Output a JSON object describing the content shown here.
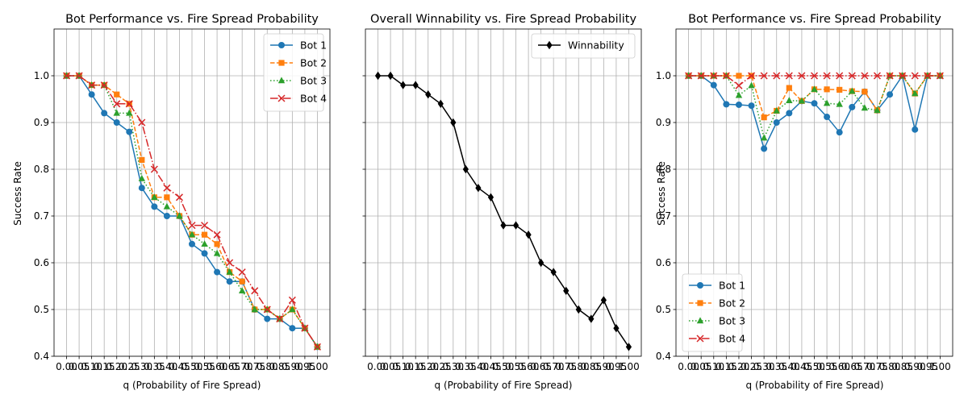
{
  "colors": {
    "bot1": "#1f77b4",
    "bot2": "#ff7f0e",
    "bot3": "#2ca02c",
    "bot4": "#d62728",
    "winnability": "#000000",
    "grid": "#b0b0b0"
  },
  "chart_data": [
    {
      "type": "line",
      "title": "Bot Performance vs. Fire Spread Probability",
      "xlabel": "q (Probability of Fire Spread)",
      "ylabel": "Success Rate",
      "ylim": [
        0.4,
        1.1
      ],
      "yticks": [
        "0.4",
        "0.5",
        "0.6",
        "0.7",
        "0.8",
        "0.9",
        "1.0"
      ],
      "x": [
        0.0,
        0.05,
        0.1,
        0.15,
        0.2,
        0.25,
        0.3,
        0.35,
        0.4,
        0.45,
        0.5,
        0.55,
        0.6,
        0.65,
        0.7,
        0.75,
        0.8,
        0.85,
        0.9,
        0.95,
        1.0
      ],
      "xticklabels": [
        "0.00",
        "0.05",
        "0.10",
        "0.15",
        "0.20",
        "0.25",
        "0.30",
        "0.35",
        "0.40",
        "0.45",
        "0.50",
        "0.55",
        "0.60",
        "0.65",
        "0.70",
        "0.75",
        "0.80",
        "0.85",
        "0.90",
        "0.95",
        "1.00"
      ],
      "grid": true,
      "legend": "upper right",
      "series": [
        {
          "name": "Bot 1",
          "marker": "circle",
          "dash": "solid",
          "color": "#1f77b4",
          "values": [
            1.0,
            1.0,
            0.96,
            0.92,
            0.9,
            0.88,
            0.76,
            0.72,
            0.7,
            0.7,
            0.64,
            0.62,
            0.58,
            0.56,
            0.56,
            0.5,
            0.48,
            0.48,
            0.46,
            0.46,
            0.42
          ]
        },
        {
          "name": "Bot 2",
          "marker": "square",
          "dash": "dashed",
          "color": "#ff7f0e",
          "values": [
            1.0,
            1.0,
            0.98,
            0.98,
            0.96,
            0.94,
            0.82,
            0.74,
            0.74,
            0.7,
            0.66,
            0.66,
            0.64,
            0.58,
            0.56,
            0.5,
            0.5,
            0.48,
            0.5,
            0.46,
            0.42
          ]
        },
        {
          "name": "Bot 3",
          "marker": "triangle",
          "dash": "dotted",
          "color": "#2ca02c",
          "values": [
            1.0,
            1.0,
            0.98,
            0.98,
            0.92,
            0.92,
            0.78,
            0.74,
            0.72,
            0.7,
            0.66,
            0.64,
            0.62,
            0.58,
            0.54,
            0.5,
            0.5,
            0.48,
            0.5,
            0.46,
            0.42
          ]
        },
        {
          "name": "Bot 4",
          "marker": "x",
          "dash": "dashdot",
          "color": "#d62728",
          "values": [
            1.0,
            1.0,
            0.98,
            0.98,
            0.94,
            0.94,
            0.9,
            0.8,
            0.76,
            0.74,
            0.68,
            0.68,
            0.66,
            0.6,
            0.58,
            0.54,
            0.5,
            0.48,
            0.52,
            0.46,
            0.42
          ]
        }
      ]
    },
    {
      "type": "line",
      "title": "Overall Winnability vs. Fire Spread Probability",
      "xlabel": "q (Probability of Fire Spread)",
      "ylabel": "",
      "ylim": [
        0.4,
        1.1
      ],
      "x": [
        0.0,
        0.05,
        0.1,
        0.15,
        0.2,
        0.25,
        0.3,
        0.35,
        0.4,
        0.45,
        0.5,
        0.55,
        0.6,
        0.65,
        0.7,
        0.75,
        0.8,
        0.85,
        0.9,
        0.95,
        1.0
      ],
      "xticklabels": [
        "0.00",
        "0.05",
        "0.10",
        "0.15",
        "0.20",
        "0.25",
        "0.30",
        "0.35",
        "0.40",
        "0.45",
        "0.50",
        "0.55",
        "0.60",
        "0.65",
        "0.70",
        "0.75",
        "0.80",
        "0.85",
        "0.90",
        "0.95",
        "1.00"
      ],
      "grid": true,
      "legend": "upper right",
      "series": [
        {
          "name": "Winnability",
          "marker": "diamond",
          "dash": "solid",
          "color": "#000000",
          "values": [
            1.0,
            1.0,
            0.98,
            0.98,
            0.96,
            0.94,
            0.9,
            0.8,
            0.76,
            0.74,
            0.68,
            0.68,
            0.66,
            0.6,
            0.58,
            0.54,
            0.5,
            0.48,
            0.52,
            0.46,
            0.42
          ]
        }
      ]
    },
    {
      "type": "line",
      "title": "Bot Performance vs. Fire Spread Probability",
      "xlabel": "q (Probability of Fire Spread)",
      "ylabel": "Success Rate",
      "ylim": [
        0.4,
        1.1
      ],
      "x": [
        0.0,
        0.05,
        0.1,
        0.15,
        0.2,
        0.25,
        0.3,
        0.35,
        0.4,
        0.45,
        0.5,
        0.55,
        0.6,
        0.65,
        0.7,
        0.75,
        0.8,
        0.85,
        0.9,
        0.95,
        1.0
      ],
      "xticklabels": [
        "0.00",
        "0.05",
        "0.10",
        "0.15",
        "0.20",
        "0.25",
        "0.30",
        "0.35",
        "0.40",
        "0.45",
        "0.50",
        "0.55",
        "0.60",
        "0.65",
        "0.70",
        "0.75",
        "0.80",
        "0.85",
        "0.90",
        "0.95",
        "1.00"
      ],
      "grid": true,
      "legend": "lower left",
      "series": [
        {
          "name": "Bot 1",
          "marker": "circle",
          "dash": "solid",
          "color": "#1f77b4",
          "values": [
            1.0,
            1.0,
            0.98,
            0.939,
            0.938,
            0.936,
            0.844,
            0.9,
            0.92,
            0.946,
            0.941,
            0.912,
            0.879,
            0.933,
            0.966,
            0.926,
            0.96,
            1.0,
            0.885,
            1.0,
            1.0
          ]
        },
        {
          "name": "Bot 2",
          "marker": "square",
          "dash": "dashed",
          "color": "#ff7f0e",
          "values": [
            1.0,
            1.0,
            1.0,
            1.0,
            1.0,
            1.0,
            0.911,
            0.925,
            0.974,
            0.946,
            0.971,
            0.971,
            0.97,
            0.967,
            0.966,
            0.926,
            1.0,
            1.0,
            0.962,
            1.0,
            1.0
          ]
        },
        {
          "name": "Bot 3",
          "marker": "triangle",
          "dash": "dotted",
          "color": "#2ca02c",
          "values": [
            1.0,
            1.0,
            1.0,
            1.0,
            0.958,
            0.979,
            0.867,
            0.925,
            0.947,
            0.946,
            0.971,
            0.941,
            0.939,
            0.967,
            0.931,
            0.926,
            1.0,
            1.0,
            0.962,
            1.0,
            1.0
          ]
        },
        {
          "name": "Bot 4",
          "marker": "x",
          "dash": "dashdot",
          "color": "#d62728",
          "values": [
            1.0,
            1.0,
            1.0,
            1.0,
            0.979,
            1.0,
            1.0,
            1.0,
            1.0,
            1.0,
            1.0,
            1.0,
            1.0,
            1.0,
            1.0,
            1.0,
            1.0,
            1.0,
            1.0,
            1.0,
            1.0
          ]
        }
      ]
    }
  ]
}
